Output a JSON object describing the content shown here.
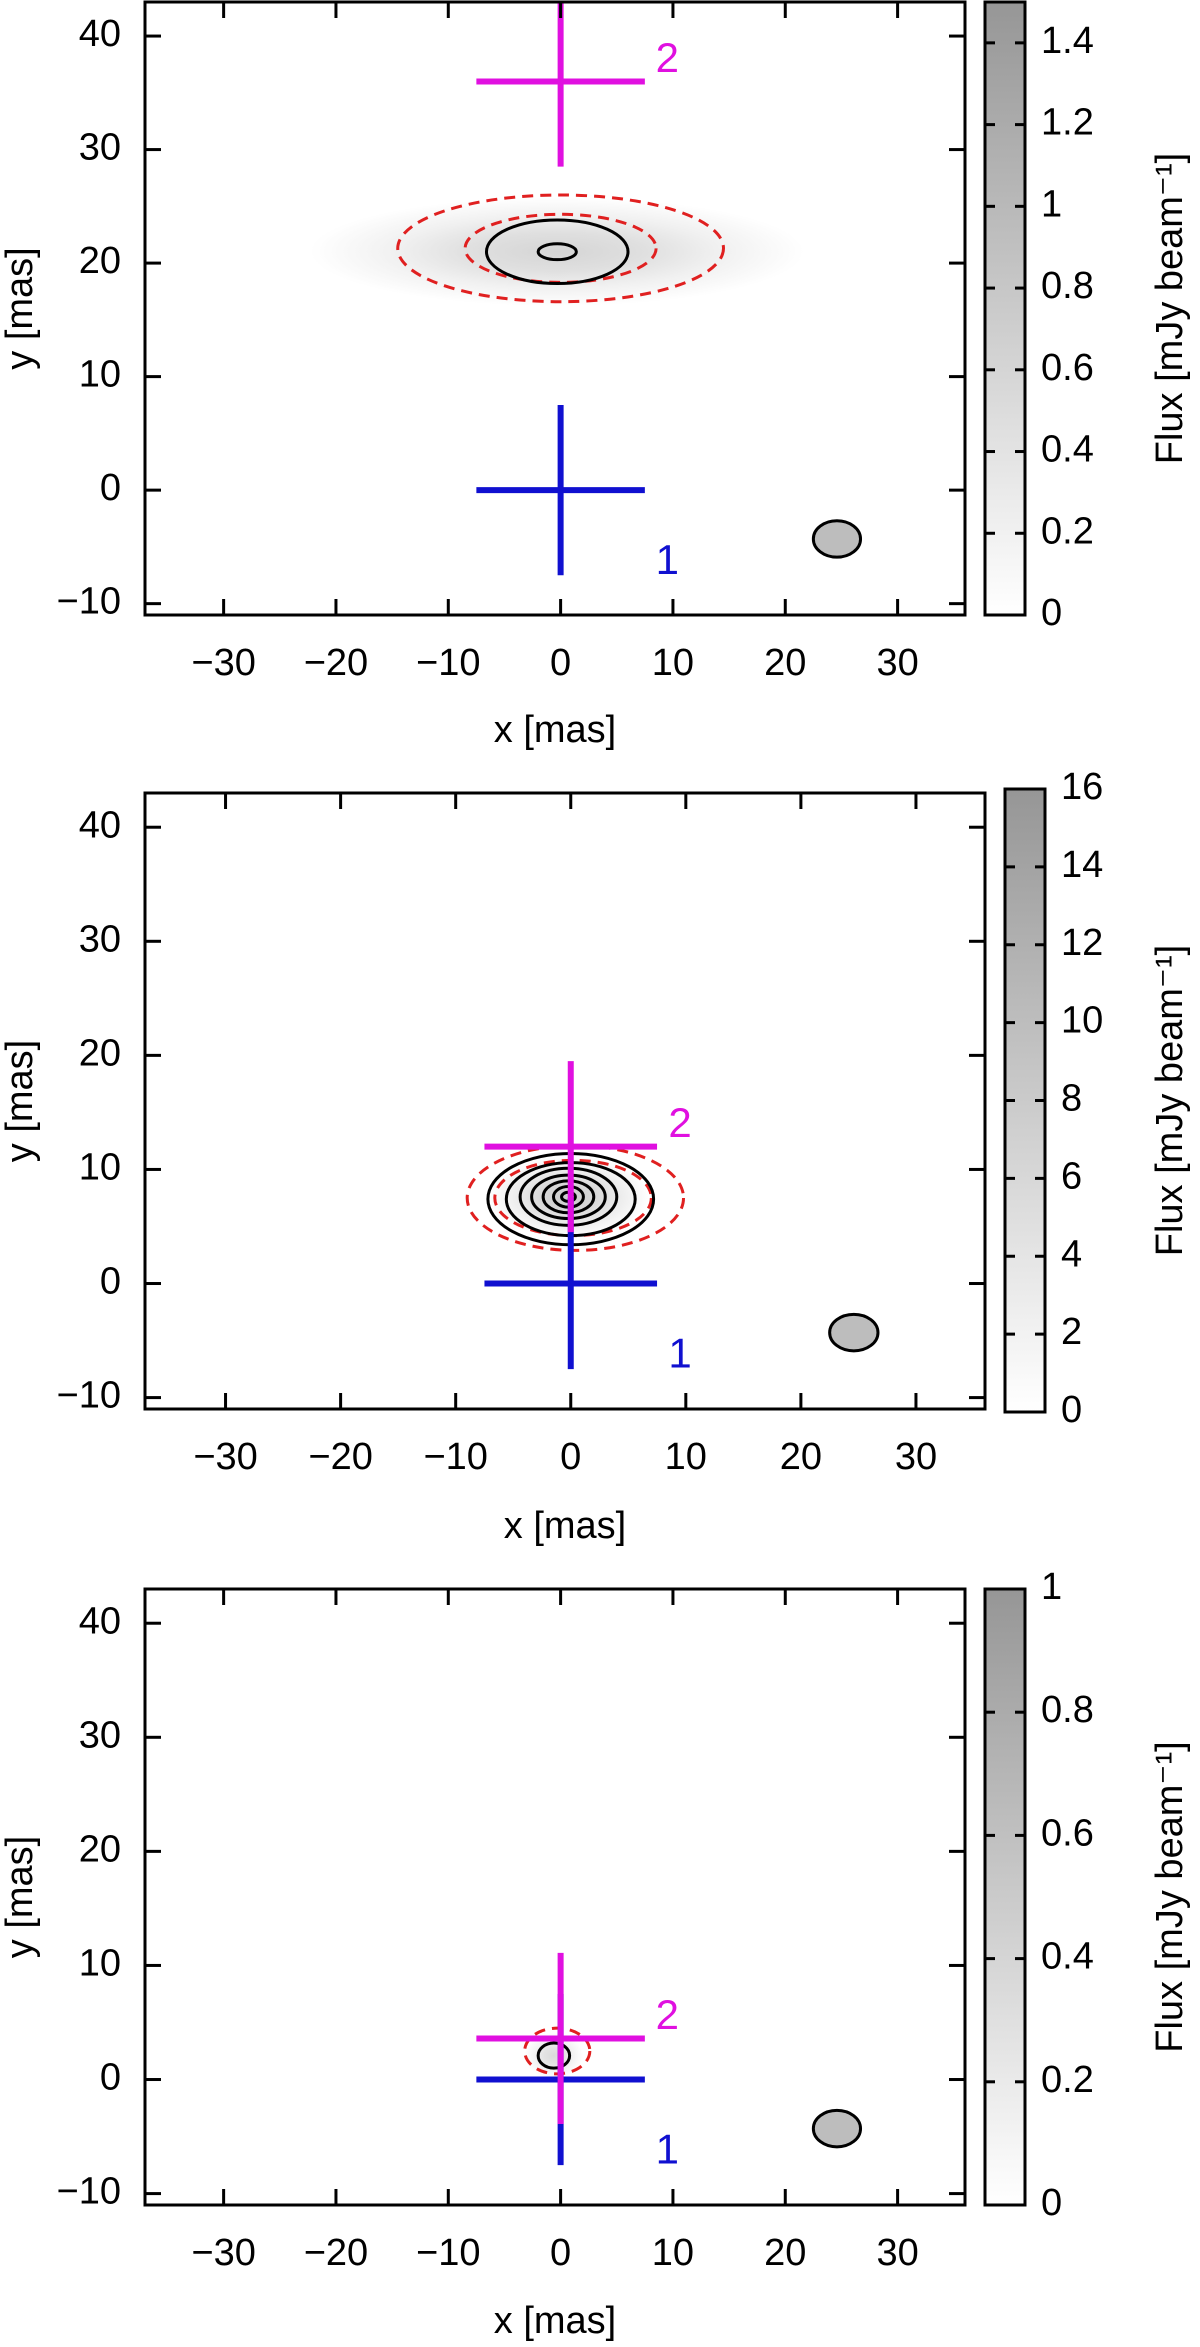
{
  "chart_data": [
    {
      "type": "heatmap",
      "xlabel": "x [mas]",
      "ylabel": "y [mas]",
      "colorbar_label": "Flux [mJy beam⁻¹]",
      "xlim": [
        -37,
        36
      ],
      "ylim": [
        -11,
        43
      ],
      "xticks": [
        -30,
        -20,
        -10,
        0,
        10,
        20,
        30
      ],
      "yticks": [
        -10,
        0,
        10,
        20,
        30,
        40
      ],
      "colorbar_range": [
        0,
        1.5
      ],
      "colorbar_ticks": [
        0,
        0.2,
        0.4,
        0.6,
        0.8,
        1,
        1.2,
        1.4
      ],
      "emission": {
        "x": -0.3,
        "y": 21,
        "sx": 11,
        "sy": 2.4,
        "peak": 0.6
      },
      "contours_solid": [
        {
          "x": -0.3,
          "y": 21,
          "rx": 6.3,
          "ry": 2.8
        },
        {
          "x": -0.3,
          "y": 21,
          "rx": 1.7,
          "ry": 0.7
        }
      ],
      "contours_dashed": [
        {
          "x": 0,
          "y": 21.3,
          "rx": 14.5,
          "ry": 4.7
        },
        {
          "x": 0,
          "y": 21.3,
          "rx": 8.5,
          "ry": 3.0
        }
      ],
      "markers": [
        {
          "label": "1",
          "x": 0,
          "y": 0,
          "half_width": 7.5,
          "half_height": 7.5,
          "color": "#1010d0"
        },
        {
          "label": "2",
          "x": 0,
          "y": 36,
          "half_width": 7.5,
          "half_height": 7.5,
          "color": "#e010e0"
        }
      ],
      "beam": {
        "x": 24.6,
        "y": -4.3,
        "rx": 2.1,
        "ry": 1.6
      }
    },
    {
      "type": "heatmap",
      "xlabel": "x [mas]",
      "ylabel": "y [mas]",
      "colorbar_label": "Flux [mJy beam⁻¹]",
      "xlim": [
        -37,
        36
      ],
      "ylim": [
        -11,
        43
      ],
      "xticks": [
        -30,
        -20,
        -10,
        0,
        10,
        20,
        30
      ],
      "yticks": [
        -10,
        0,
        10,
        20,
        30,
        40
      ],
      "colorbar_range": [
        0,
        16
      ],
      "colorbar_ticks": [
        0,
        2,
        4,
        6,
        8,
        10,
        12,
        14,
        16
      ],
      "emission": {
        "x": -0.2,
        "y": 7.6,
        "sx": 3.5,
        "sy": 1.8,
        "peak": 8
      },
      "contours_solid": [
        {
          "x": 0,
          "y": 7.4,
          "rx": 7.2,
          "ry": 4.0
        },
        {
          "x": 0,
          "y": 7.4,
          "rx": 5.6,
          "ry": 3.2
        },
        {
          "x": -0.2,
          "y": 7.6,
          "rx": 4.2,
          "ry": 2.5
        },
        {
          "x": -0.2,
          "y": 7.6,
          "rx": 3.2,
          "ry": 1.9
        },
        {
          "x": -0.2,
          "y": 7.6,
          "rx": 2.2,
          "ry": 1.4
        },
        {
          "x": -0.2,
          "y": 7.6,
          "rx": 1.3,
          "ry": 0.9
        },
        {
          "x": -0.2,
          "y": 7.6,
          "rx": 0.6,
          "ry": 0.4
        }
      ],
      "contours_dashed": [
        {
          "x": 0.4,
          "y": 7.5,
          "rx": 9.4,
          "ry": 4.6
        },
        {
          "x": 0.2,
          "y": 7.5,
          "rx": 6.8,
          "ry": 3.3
        }
      ],
      "markers": [
        {
          "label": "1",
          "x": 0,
          "y": 0,
          "half_width": 7.5,
          "half_height": 7.5,
          "color": "#1010d0"
        },
        {
          "label": "2",
          "x": 0,
          "y": 12,
          "half_width": 7.5,
          "half_height": 7.5,
          "color": "#e010e0"
        }
      ],
      "beam": {
        "x": 24.6,
        "y": -4.3,
        "rx": 2.1,
        "ry": 1.6
      }
    },
    {
      "type": "heatmap",
      "xlabel": "x [mas]",
      "ylabel": "y [mas]",
      "colorbar_label": "Flux [mJy beam⁻¹]",
      "xlim": [
        -37,
        36
      ],
      "ylim": [
        -11,
        43
      ],
      "xticks": [
        -30,
        -20,
        -10,
        0,
        10,
        20,
        30
      ],
      "yticks": [
        -10,
        0,
        10,
        20,
        30,
        40
      ],
      "colorbar_range": [
        0,
        1
      ],
      "colorbar_ticks": [
        0,
        0.2,
        0.4,
        0.6,
        0.8,
        1
      ],
      "emission": {
        "x": -0.6,
        "y": 2.1,
        "sx": 1.3,
        "sy": 1.0,
        "peak": 0.35
      },
      "contours_solid": [
        {
          "x": -0.6,
          "y": 2.1,
          "rx": 1.4,
          "ry": 1.1
        }
      ],
      "contours_dashed": [
        {
          "x": -0.3,
          "y": 2.5,
          "rx": 2.9,
          "ry": 2.0
        }
      ],
      "markers": [
        {
          "label": "1",
          "x": 0,
          "y": 0,
          "half_width": 7.5,
          "half_height": 7.5,
          "color": "#1010d0"
        },
        {
          "label": "2",
          "x": 0,
          "y": 3.6,
          "half_width": 7.5,
          "half_height": 7.5,
          "color": "#e010e0"
        }
      ],
      "beam": {
        "x": 24.6,
        "y": -4.3,
        "rx": 2.1,
        "ry": 1.6
      }
    }
  ]
}
